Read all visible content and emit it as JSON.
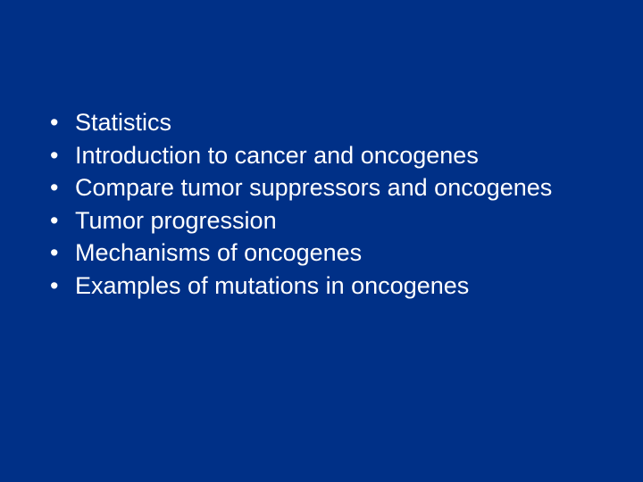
{
  "slide": {
    "background_color": "#003087",
    "text_color": "#ffffff",
    "font_family": "Arial",
    "font_size_pt": 27,
    "bullet_char": "•",
    "bullets": [
      "Statistics",
      "Introduction to cancer and oncogenes",
      "Compare tumor suppressors and oncogenes",
      "Tumor progression",
      "Mechanisms of oncogenes",
      "Examples of mutations in oncogenes"
    ]
  }
}
